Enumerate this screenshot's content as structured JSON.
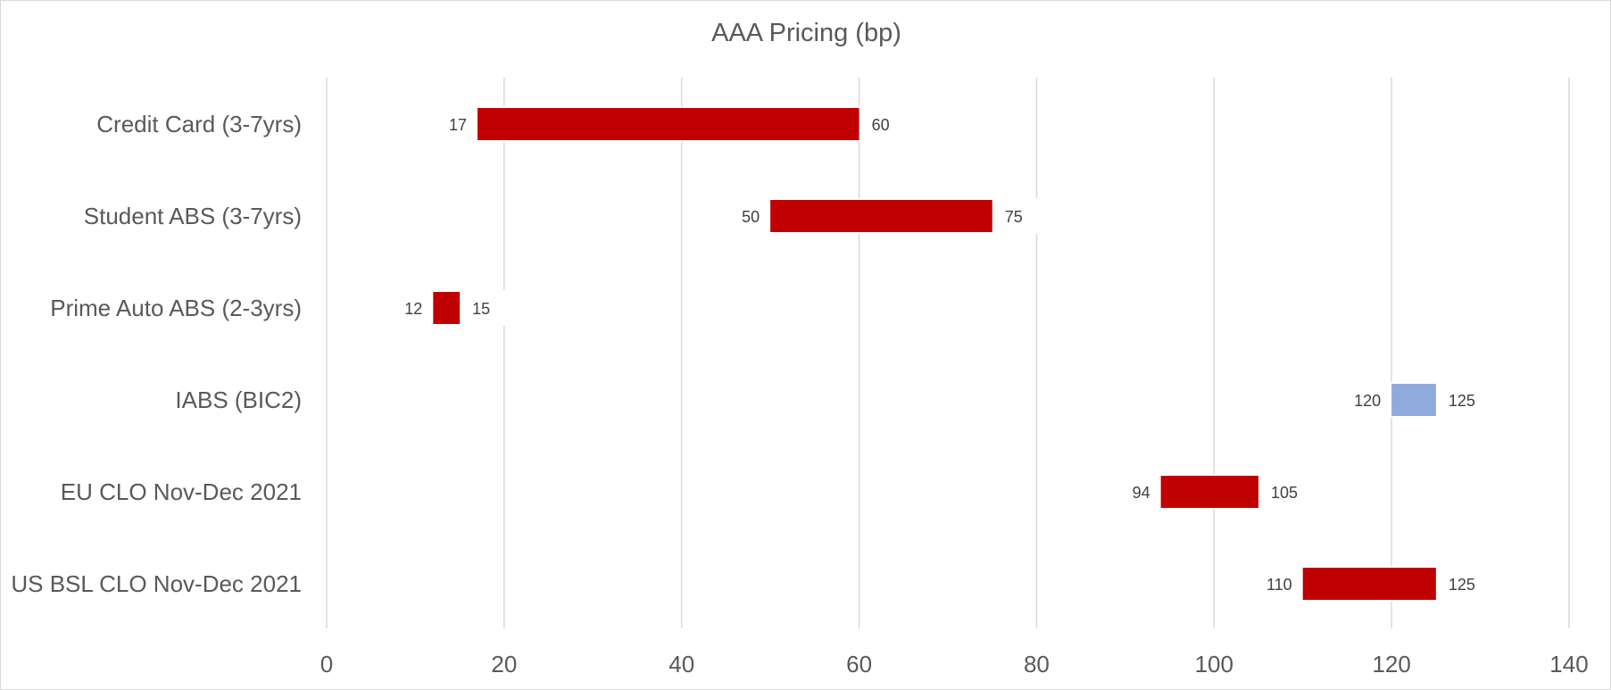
{
  "chart_data": {
    "type": "bar",
    "orientation": "horizontal",
    "style": "floating-range",
    "title": "AAA Pricing (bp)",
    "categories": [
      "Credit Card (3-7yrs)",
      "Student ABS (3-7yrs)",
      "Prime Auto ABS (2-3yrs)",
      "IABS (BIC2)",
      "EU CLO Nov-Dec 2021",
      "US BSL CLO Nov-Dec 2021"
    ],
    "low": [
      17,
      50,
      12,
      120,
      94,
      110
    ],
    "high": [
      60,
      75,
      15,
      125,
      105,
      125
    ],
    "low_labels": [
      "17",
      "50",
      "12",
      "120",
      "94",
      "110"
    ],
    "high_labels": [
      "60",
      "75",
      "15",
      "125",
      "105",
      "125"
    ],
    "bar_colors": [
      "#c00000",
      "#c00000",
      "#c00000",
      "#8faadc",
      "#c00000",
      "#c00000"
    ],
    "xlim": [
      0,
      140
    ],
    "xticks": [
      0,
      20,
      40,
      60,
      80,
      100,
      120,
      140
    ],
    "xtick_labels": [
      "0",
      "20",
      "40",
      "60",
      "80",
      "100",
      "120",
      "140"
    ],
    "xlabel": "",
    "ylabel": "",
    "grid": "vertical",
    "grid_color": "#d9d9d9",
    "legend": "none"
  }
}
